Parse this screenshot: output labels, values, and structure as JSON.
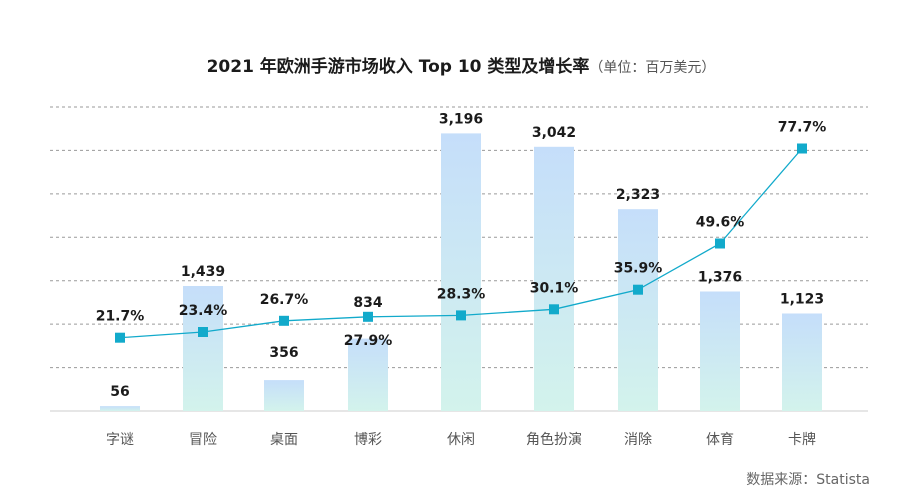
{
  "chart_data": {
    "type": "bar",
    "title": "2021 年欧洲手游市场收入 Top 10 类型及增长率",
    "title_unit": "（单位：百万美元）",
    "source": "数据来源：Statista",
    "xlabel": "",
    "ylabel": "",
    "ylim": [
      0,
      3500
    ],
    "growth_ylim": [
      0,
      90
    ],
    "grid": true,
    "categories": [
      "字谜",
      "冒险",
      "桌面",
      "博彩",
      "休闲",
      "角色扮演",
      "消除",
      "体育",
      "卡牌"
    ],
    "series": [
      {
        "name": "收入",
        "kind": "bar",
        "values": [
          56,
          1439,
          356,
          834,
          3196,
          3042,
          2323,
          1376,
          1123
        ],
        "labels": [
          "56",
          "1,439",
          "356",
          "834",
          "3,196",
          "3,042",
          "2,323",
          "1,376",
          "1,123"
        ]
      },
      {
        "name": "增长率",
        "kind": "line",
        "values": [
          21.7,
          23.4,
          26.7,
          27.9,
          28.3,
          30.1,
          35.9,
          49.6,
          77.7
        ],
        "labels": [
          "21.7%",
          "23.4%",
          "26.7%",
          "27.9%",
          "28.3%",
          "30.1%",
          "35.9%",
          "49.6%",
          "77.7%"
        ]
      }
    ],
    "colors": {
      "bar_top": "#c5defa",
      "bar_bottom": "#d3f3ec",
      "line": "#12aacb",
      "marker": "#12aacb",
      "grid": "#9a9a9a",
      "axis": "#cccccc"
    }
  }
}
